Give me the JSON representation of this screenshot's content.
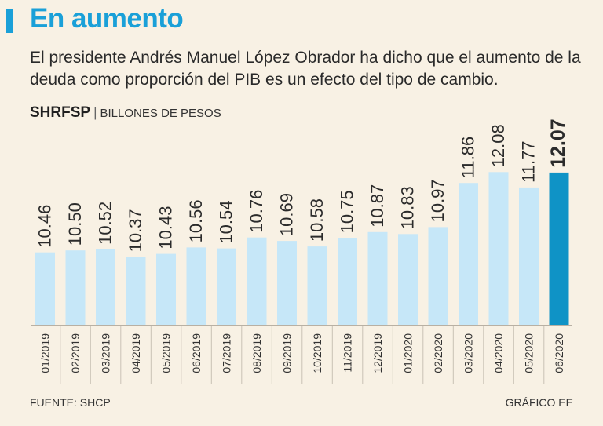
{
  "header": {
    "title": "En aumento",
    "subtitle": "El presidente Andrés Manuel López Obrador ha dicho que el aumento de la deuda como proporción del PIB es un efecto del tipo de cambio.",
    "unit_main": "SHRFSP",
    "unit_sep": "|",
    "unit_sub": "BILLONES DE PESOS"
  },
  "footer": {
    "source": "FUENTE: SHCP",
    "credit": "GRÁFICO EE"
  },
  "colors": {
    "accent": "#1aa0d8",
    "bar": "#c6e7f8",
    "highlight": "#0f93c6",
    "background": "#f8f1e4"
  },
  "chart_data": {
    "type": "bar",
    "title": "SHRFSP",
    "ylabel": "BILLONES DE PESOS",
    "categories": [
      "01/2019",
      "02/2019",
      "03/2019",
      "04/2019",
      "05/2019",
      "06/2019",
      "07/2019",
      "08/2019",
      "09/2019",
      "10/2019",
      "11/2019",
      "12/2019",
      "01/2020",
      "02/2020",
      "03/2020",
      "04/2020",
      "05/2020",
      "06/2020"
    ],
    "values": [
      10.46,
      10.5,
      10.52,
      10.37,
      10.43,
      10.56,
      10.54,
      10.76,
      10.69,
      10.58,
      10.75,
      10.87,
      10.83,
      10.97,
      11.86,
      12.08,
      11.77,
      12.07
    ],
    "value_labels": [
      "10.46",
      "10.50",
      "10.52",
      "10.37",
      "10.43",
      "10.56",
      "10.54",
      "10.76",
      "10.69",
      "10.58",
      "10.75",
      "10.87",
      "10.83",
      "10.97",
      "11.86",
      "12.08",
      "11.77",
      "12.07"
    ],
    "highlight_index": 17,
    "ylim": [
      9.0,
      12.1
    ],
    "grid": false,
    "legend": "none"
  }
}
